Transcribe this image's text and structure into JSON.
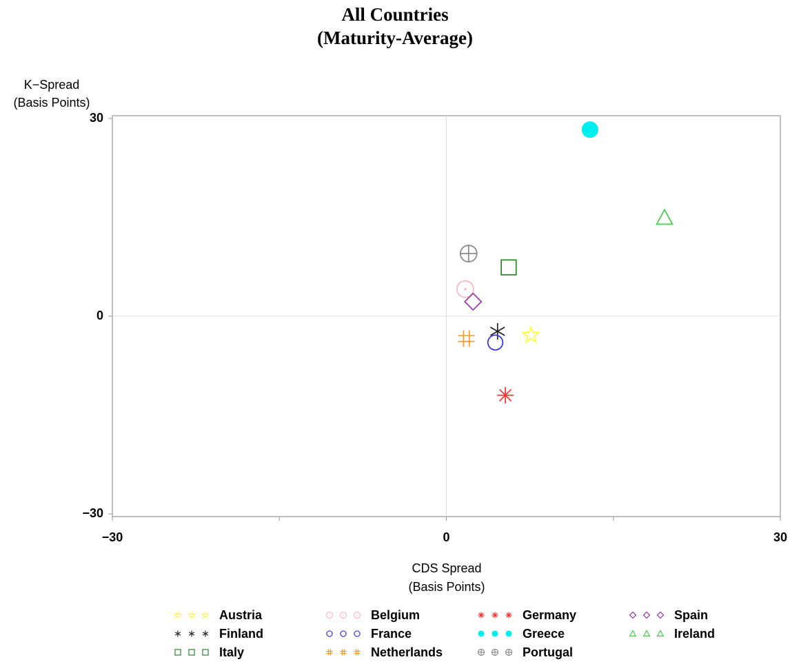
{
  "chart_data": {
    "type": "scatter",
    "title": "All Countries",
    "subtitle": "(Maturity-Average)",
    "ylabel": [
      "K−Spread",
      "(Basis Points)"
    ],
    "xlabel": [
      "CDS Spread",
      "(Basis Points)"
    ],
    "xlim": [
      -30,
      30
    ],
    "ylim": [
      -30,
      30
    ],
    "xticks": [
      {
        "value": -30,
        "label": "−30"
      },
      0,
      30
    ],
    "yticks": [
      {
        "value": -30,
        "label": "−30"
      },
      0,
      30
    ],
    "xminorticks": [
      -15,
      15
    ],
    "grid": true,
    "series": [
      {
        "name": "Austria",
        "color": "#ffff33",
        "marker": "star",
        "x": [
          7.6
        ],
        "y": [
          -2.9
        ]
      },
      {
        "name": "Belgium",
        "color": "#ffb6c1",
        "marker": "circle-dot",
        "x": [
          1.7
        ],
        "y": [
          4.1
        ]
      },
      {
        "name": "Germany",
        "color": "#ff3333",
        "marker": "asterisk8",
        "x": [
          5.3
        ],
        "y": [
          -12.0
        ]
      },
      {
        "name": "Spain",
        "color": "#9933aa",
        "marker": "diamond",
        "x": [
          2.4
        ],
        "y": [
          2.2
        ]
      },
      {
        "name": "Finland",
        "color": "#222222",
        "marker": "asterisk",
        "x": [
          4.6
        ],
        "y": [
          -2.3
        ]
      },
      {
        "name": "France",
        "color": "#3333dd",
        "marker": "circle",
        "x": [
          4.4
        ],
        "y": [
          -4.0
        ]
      },
      {
        "name": "Greece",
        "color": "#00eeee",
        "marker": "filled-circle",
        "x": [
          12.9
        ],
        "y": [
          28.3
        ]
      },
      {
        "name": "Ireland",
        "color": "#44cc44",
        "marker": "triangle",
        "x": [
          19.6
        ],
        "y": [
          14.9
        ]
      },
      {
        "name": "Italy",
        "color": "#228822",
        "marker": "square",
        "x": [
          5.6
        ],
        "y": [
          7.4
        ]
      },
      {
        "name": "Netherlands",
        "color": "#ff9922",
        "marker": "hash",
        "x": [
          1.8
        ],
        "y": [
          -3.4
        ]
      },
      {
        "name": "Portugal",
        "color": "#888888",
        "marker": "circle-plus",
        "x": [
          2.0
        ],
        "y": [
          9.5
        ]
      }
    ]
  }
}
